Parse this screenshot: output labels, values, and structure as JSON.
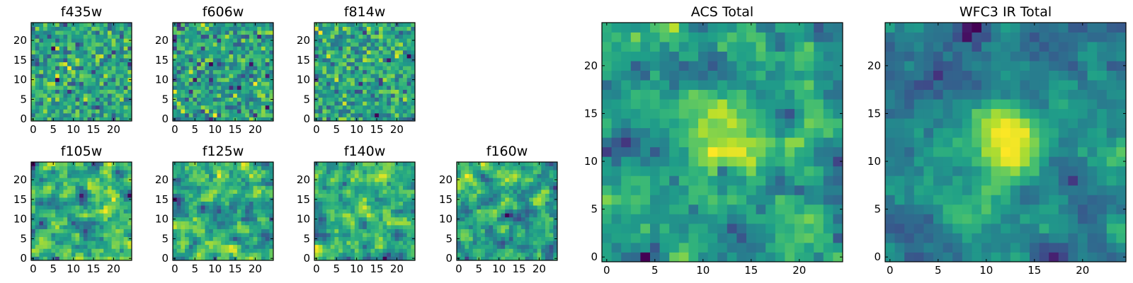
{
  "chart_data": [
    {
      "type": "heatmap",
      "title": "f435w",
      "grid_size": 25,
      "x_ticks": [
        0,
        5,
        10,
        15,
        20
      ],
      "y_ticks": [
        0,
        5,
        10,
        15,
        20
      ],
      "xlim": [
        -0.5,
        24.5
      ],
      "ylim": [
        -0.5,
        24.5
      ],
      "colormap": "viridis",
      "texture": "fine pixel noise",
      "cells": "25x25 noise-like pixel intensities, not individually legible"
    },
    {
      "type": "heatmap",
      "title": "f606w",
      "grid_size": 25,
      "x_ticks": [
        0,
        5,
        10,
        15,
        20
      ],
      "y_ticks": [
        0,
        5,
        10,
        15,
        20
      ],
      "xlim": [
        -0.5,
        24.5
      ],
      "ylim": [
        -0.5,
        24.5
      ],
      "colormap": "viridis",
      "texture": "fine pixel noise",
      "cells": "25x25 noise-like pixel intensities, not individually legible"
    },
    {
      "type": "heatmap",
      "title": "f814w",
      "grid_size": 25,
      "x_ticks": [
        0,
        5,
        10,
        15,
        20
      ],
      "y_ticks": [
        0,
        5,
        10,
        15,
        20
      ],
      "xlim": [
        -0.5,
        24.5
      ],
      "ylim": [
        -0.5,
        24.5
      ],
      "colormap": "viridis",
      "texture": "fine pixel noise",
      "cells": "25x25 noise-like pixel intensities, not individually legible"
    },
    {
      "type": "heatmap",
      "title": "f105w",
      "grid_size": 25,
      "x_ticks": [
        0,
        5,
        10,
        15,
        20
      ],
      "y_ticks": [
        0,
        5,
        10,
        15,
        20
      ],
      "xlim": [
        -0.5,
        24.5
      ],
      "ylim": [
        -0.5,
        24.5
      ],
      "colormap": "viridis",
      "texture": "smoothed noise",
      "cells": "25x25 noise-like pixel intensities, not individually legible"
    },
    {
      "type": "heatmap",
      "title": "f125w",
      "grid_size": 25,
      "x_ticks": [
        0,
        5,
        10,
        15,
        20
      ],
      "y_ticks": [
        0,
        5,
        10,
        15,
        20
      ],
      "xlim": [
        -0.5,
        24.5
      ],
      "ylim": [
        -0.5,
        24.5
      ],
      "colormap": "viridis",
      "texture": "smoothed noise",
      "cells": "25x25 noise-like pixel intensities, not individually legible"
    },
    {
      "type": "heatmap",
      "title": "f140w",
      "grid_size": 25,
      "x_ticks": [
        0,
        5,
        10,
        15,
        20
      ],
      "y_ticks": [
        0,
        5,
        10,
        15,
        20
      ],
      "xlim": [
        -0.5,
        24.5
      ],
      "ylim": [
        -0.5,
        24.5
      ],
      "colormap": "viridis",
      "texture": "smoothed noise",
      "cells": "25x25 noise-like pixel intensities, not individually legible"
    },
    {
      "type": "heatmap",
      "title": "f160w",
      "grid_size": 25,
      "x_ticks": [
        0,
        5,
        10,
        15,
        20
      ],
      "y_ticks": [
        0,
        5,
        10,
        15,
        20
      ],
      "xlim": [
        -0.5,
        24.5
      ],
      "ylim": [
        -0.5,
        24.5
      ],
      "colormap": "viridis",
      "texture": "smoothed noise",
      "cells": "25x25 noise-like pixel intensities, not individually legible"
    },
    {
      "type": "heatmap",
      "title": "ACS Total",
      "grid_size": 25,
      "x_ticks": [
        0,
        5,
        10,
        15,
        20
      ],
      "y_ticks": [
        0,
        5,
        10,
        15,
        20
      ],
      "xlim": [
        -0.5,
        24.5
      ],
      "ylim": [
        -0.5,
        24.5
      ],
      "colormap": "viridis",
      "texture": "coadded noise with faint central source",
      "cells": "25x25 noise-like pixel intensities, not individually legible"
    },
    {
      "type": "heatmap",
      "title": "WFC3 IR Total",
      "grid_size": 25,
      "x_ticks": [
        0,
        5,
        10,
        15,
        20
      ],
      "y_ticks": [
        0,
        5,
        10,
        15,
        20
      ],
      "xlim": [
        -0.5,
        24.5
      ],
      "ylim": [
        -0.5,
        24.5
      ],
      "colormap": "viridis",
      "texture": "coadded noise with bright central source",
      "cells": "25x25 noise-like pixel intensities, not individually legible"
    }
  ]
}
